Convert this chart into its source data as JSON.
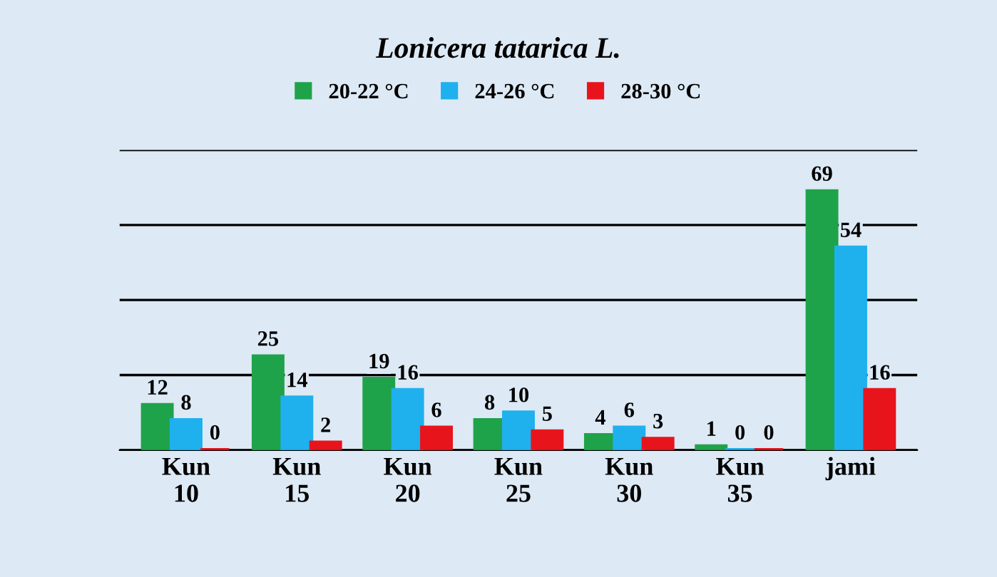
{
  "chart_data": {
    "type": "bar",
    "title": "Lonicera tatarica L.",
    "categories": [
      "Kun\n10",
      "Kun\n15",
      "Kun\n20",
      "Kun\n25",
      "Kun\n30",
      "Kun\n35",
      "jami"
    ],
    "series": [
      {
        "name": "20-22 °C",
        "color": "#1fa34a",
        "values": [
          12,
          25,
          19,
          8,
          4,
          1,
          69
        ]
      },
      {
        "name": "24-26 °C",
        "color": "#1fb0ee",
        "values": [
          8,
          14,
          16,
          10,
          6,
          0,
          54
        ]
      },
      {
        "name": "28-30 °C",
        "color": "#e8141c",
        "values": [
          0,
          2,
          6,
          5,
          3,
          0,
          16
        ]
      }
    ],
    "ylim": [
      0,
      80
    ],
    "yticks": [
      {
        "value": 0,
        "label": null
      },
      {
        "value": 20,
        "label": null
      },
      {
        "value": 40,
        "label": null
      },
      {
        "value": 60,
        "label": null
      },
      {
        "value": 80,
        "label": null
      }
    ],
    "tick_labels": "x",
    "grid": "y",
    "legend": "top",
    "data_labels": true
  }
}
